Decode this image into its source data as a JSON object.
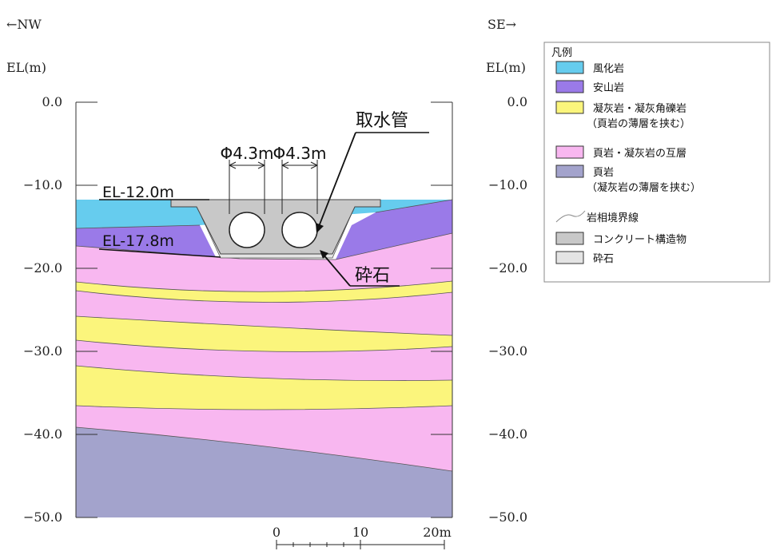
{
  "direction": {
    "left": "←NW",
    "right": "SE→"
  },
  "axis": {
    "unit_label": "EL(m)",
    "ticks": [
      "0.0",
      "−10.0",
      "−20.0",
      "−30.0",
      "−40.0",
      "−50.0"
    ]
  },
  "annotations": {
    "intake_pipe": "取水管",
    "pipe_diameter_left": "Φ4.3m",
    "pipe_diameter_right": "Φ4.3m",
    "el_top": "EL-12.0m",
    "el_bottom": "EL-17.8m",
    "crushed_stone": "砕石"
  },
  "scale_bar": {
    "labels": [
      "0",
      "10",
      "20m"
    ]
  },
  "legend": {
    "title": "凡例",
    "items": [
      {
        "label": "風化岩",
        "color": "#66ccee"
      },
      {
        "label": "安山岩",
        "color": "#9a7ae8"
      },
      {
        "label": "凝灰岩・凝灰角礫岩",
        "sub": "（頁岩の薄層を挟む）",
        "color": "#fbf57c"
      },
      {
        "label": "頁岩・凝灰岩の互層",
        "color": "#f8b7f0"
      },
      {
        "label": "頁岩",
        "sub": "（凝灰岩の薄層を挟む）",
        "color": "#a3a3cc"
      },
      {
        "label": "岩相境界線",
        "type": "line"
      },
      {
        "label": "コンクリート構造物",
        "color": "#c8c8c8"
      },
      {
        "label": "砕石",
        "color": "#e4e4e4"
      }
    ]
  }
}
